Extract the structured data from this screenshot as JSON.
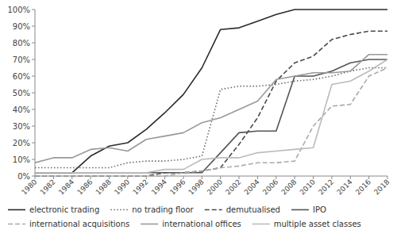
{
  "chart_data": {
    "type": "line",
    "x": [
      1980,
      1982,
      1984,
      1986,
      1988,
      1990,
      1992,
      1994,
      1996,
      1998,
      2000,
      2002,
      2004,
      2006,
      2008,
      2010,
      2012,
      2014,
      2016,
      2018
    ],
    "series": [
      {
        "name": "electronic trading",
        "color": "#2a2a2a",
        "line_style": "solid",
        "values": [
          2,
          2,
          2,
          12,
          18,
          20,
          28,
          38,
          49,
          65,
          88,
          89,
          93,
          97,
          100,
          100,
          100,
          100,
          100,
          100
        ]
      },
      {
        "name": "no trading floor",
        "color": "#6a6a6a",
        "line_style": "dotted",
        "values": [
          5,
          5,
          5,
          5,
          5,
          8,
          9,
          9,
          10,
          12,
          52,
          54,
          54,
          55,
          57,
          58,
          60,
          63,
          65,
          65
        ]
      },
      {
        "name": "demutualised",
        "color": "#4a4a4a",
        "line_style": "dashed",
        "values": [
          0,
          0,
          0,
          0,
          0,
          0,
          0,
          2,
          2,
          3,
          5,
          19,
          35,
          57,
          68,
          72,
          82,
          85,
          87,
          87
        ]
      },
      {
        "name": "IPO",
        "color": "#555555",
        "line_style": "solid",
        "values": [
          2,
          2,
          2,
          2,
          2,
          2,
          2,
          2,
          2,
          2,
          14,
          26,
          27,
          27,
          60,
          60,
          63,
          68,
          70,
          70
        ]
      },
      {
        "name": "international acquisitions",
        "color": "#aaaaaa",
        "line_style": "dashed",
        "values": [
          0,
          0,
          0,
          0,
          0,
          0,
          0,
          0,
          2,
          3,
          5,
          6,
          8,
          8,
          9,
          30,
          42,
          43,
          60,
          65
        ]
      },
      {
        "name": "international offices",
        "color": "#999999",
        "line_style": "solid",
        "values": [
          8,
          11,
          11,
          16,
          17,
          15,
          22,
          24,
          26,
          32,
          35,
          40,
          45,
          58,
          60,
          62,
          62,
          63,
          73,
          73
        ]
      },
      {
        "name": "multiple asset classes",
        "color": "#bbbbbb",
        "line_style": "solid",
        "values": [
          2,
          2,
          2,
          2,
          2,
          2,
          2,
          4,
          4,
          10,
          11,
          11,
          14,
          15,
          16,
          17,
          55,
          57,
          63,
          70
        ]
      }
    ],
    "xlim": [
      1980,
      2018
    ],
    "xticks": [
      1980,
      1982,
      1984,
      1986,
      1988,
      1990,
      1992,
      1994,
      1996,
      1998,
      2000,
      2002,
      2004,
      2006,
      2008,
      2010,
      2012,
      2014,
      2016,
      2018
    ],
    "ylim": [
      0,
      100
    ],
    "yticks": [
      {
        "value": 0,
        "label": "0%"
      },
      {
        "value": 10,
        "label": "10%"
      },
      {
        "value": 20,
        "label": "20%"
      },
      {
        "value": 30,
        "label": "30%"
      },
      {
        "value": 40,
        "label": "40%"
      },
      {
        "value": 50,
        "label": "50%"
      },
      {
        "value": 60,
        "label": "60%"
      },
      {
        "value": 70,
        "label": "70%"
      },
      {
        "value": 80,
        "label": "80%"
      },
      {
        "value": 90,
        "label": "90%"
      },
      {
        "value": 100,
        "label": "100%"
      }
    ],
    "grid": false,
    "legend": "bottom"
  }
}
